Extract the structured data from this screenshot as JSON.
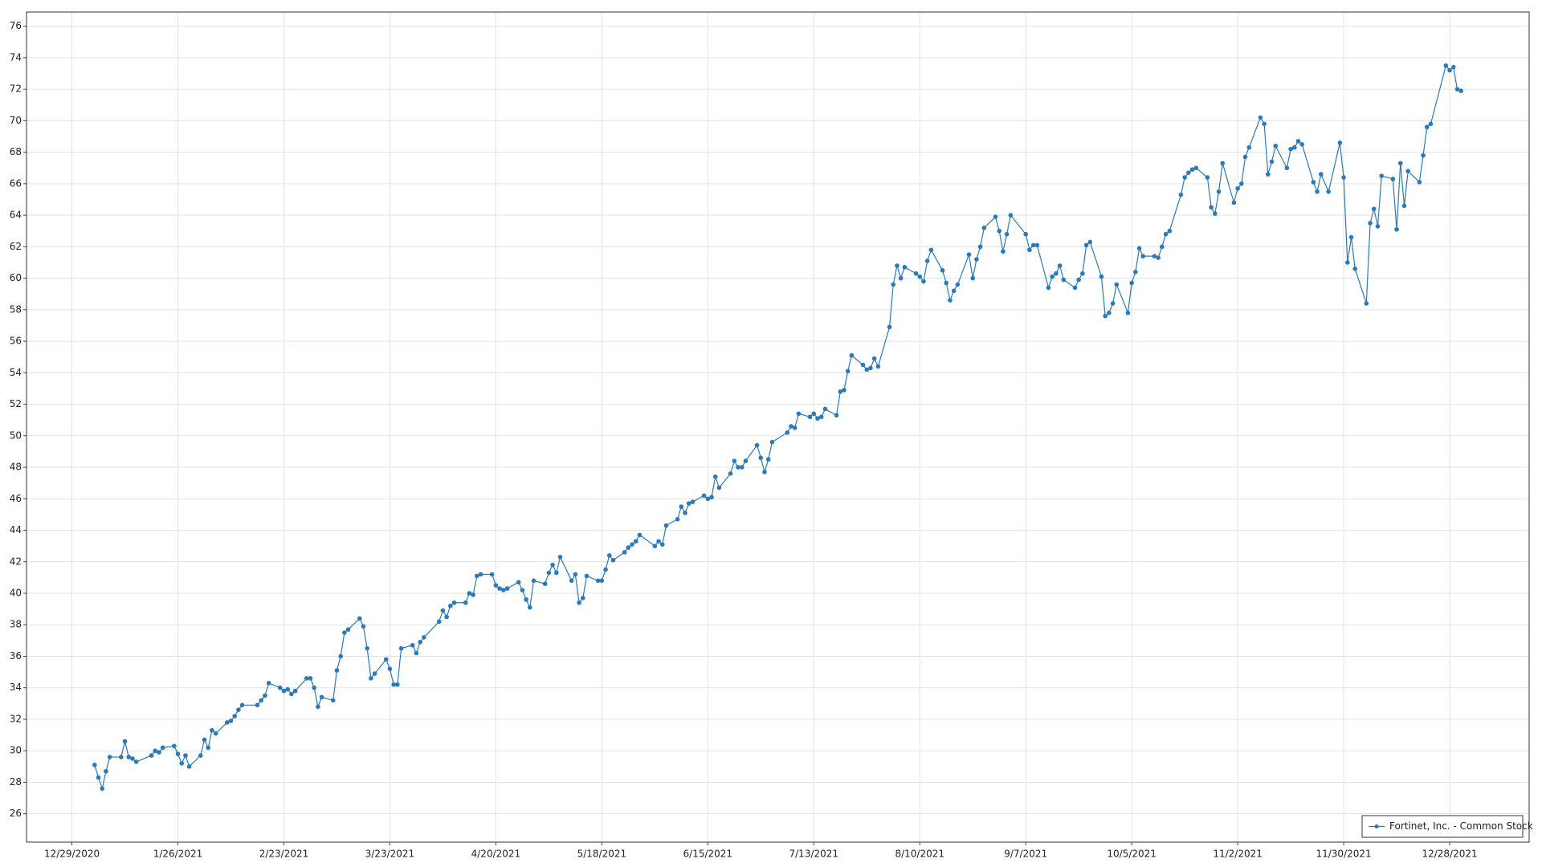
{
  "chart_data": {
    "type": "line",
    "x": [
      "1/4/2021",
      "1/5/2021",
      "1/6/2021",
      "1/7/2021",
      "1/8/2021",
      "1/11/2021",
      "1/12/2021",
      "1/13/2021",
      "1/14/2021",
      "1/15/2021",
      "1/19/2021",
      "1/20/2021",
      "1/21/2021",
      "1/22/2021",
      "1/25/2021",
      "1/26/2021",
      "1/27/2021",
      "1/28/2021",
      "1/29/2021",
      "2/1/2021",
      "2/2/2021",
      "2/3/2021",
      "2/4/2021",
      "2/5/2021",
      "2/8/2021",
      "2/9/2021",
      "2/10/2021",
      "2/11/2021",
      "2/12/2021",
      "2/16/2021",
      "2/17/2021",
      "2/18/2021",
      "2/19/2021",
      "2/22/2021",
      "2/23/2021",
      "2/24/2021",
      "2/25/2021",
      "2/26/2021",
      "3/1/2021",
      "3/2/2021",
      "3/3/2021",
      "3/4/2021",
      "3/5/2021",
      "3/8/2021",
      "3/9/2021",
      "3/10/2021",
      "3/11/2021",
      "3/12/2021",
      "3/15/2021",
      "3/16/2021",
      "3/17/2021",
      "3/18/2021",
      "3/19/2021",
      "3/22/2021",
      "3/23/2021",
      "3/24/2021",
      "3/25/2021",
      "3/26/2021",
      "3/29/2021",
      "3/30/2021",
      "3/31/2021",
      "4/1/2021",
      "4/5/2021",
      "4/6/2021",
      "4/7/2021",
      "4/8/2021",
      "4/9/2021",
      "4/12/2021",
      "4/13/2021",
      "4/14/2021",
      "4/15/2021",
      "4/16/2021",
      "4/19/2021",
      "4/20/2021",
      "4/21/2021",
      "4/22/2021",
      "4/23/2021",
      "4/26/2021",
      "4/27/2021",
      "4/28/2021",
      "4/29/2021",
      "4/30/2021",
      "5/3/2021",
      "5/4/2021",
      "5/5/2021",
      "5/6/2021",
      "5/7/2021",
      "5/10/2021",
      "5/11/2021",
      "5/12/2021",
      "5/13/2021",
      "5/14/2021",
      "5/17/2021",
      "5/18/2021",
      "5/19/2021",
      "5/20/2021",
      "5/21/2021",
      "5/24/2021",
      "5/25/2021",
      "5/26/2021",
      "5/27/2021",
      "5/28/2021",
      "6/1/2021",
      "6/2/2021",
      "6/3/2021",
      "6/4/2021",
      "6/7/2021",
      "6/8/2021",
      "6/9/2021",
      "6/10/2021",
      "6/11/2021",
      "6/14/2021",
      "6/15/2021",
      "6/16/2021",
      "6/17/2021",
      "6/18/2021",
      "6/21/2021",
      "6/22/2021",
      "6/23/2021",
      "6/24/2021",
      "6/25/2021",
      "6/28/2021",
      "6/29/2021",
      "6/30/2021",
      "7/1/2021",
      "7/2/2021",
      "7/6/2021",
      "7/7/2021",
      "7/8/2021",
      "7/9/2021",
      "7/12/2021",
      "7/13/2021",
      "7/14/2021",
      "7/15/2021",
      "7/16/2021",
      "7/19/2021",
      "7/20/2021",
      "7/21/2021",
      "7/22/2021",
      "7/23/2021",
      "7/26/2021",
      "7/27/2021",
      "7/28/2021",
      "7/29/2021",
      "7/30/2021",
      "8/2/2021",
      "8/3/2021",
      "8/4/2021",
      "8/5/2021",
      "8/6/2021",
      "8/9/2021",
      "8/10/2021",
      "8/11/2021",
      "8/12/2021",
      "8/13/2021",
      "8/16/2021",
      "8/17/2021",
      "8/18/2021",
      "8/19/2021",
      "8/20/2021",
      "8/23/2021",
      "8/24/2021",
      "8/25/2021",
      "8/26/2021",
      "8/27/2021",
      "8/30/2021",
      "8/31/2021",
      "9/1/2021",
      "9/2/2021",
      "9/3/2021",
      "9/7/2021",
      "9/8/2021",
      "9/9/2021",
      "9/10/2021",
      "9/13/2021",
      "9/14/2021",
      "9/15/2021",
      "9/16/2021",
      "9/17/2021",
      "9/20/2021",
      "9/21/2021",
      "9/22/2021",
      "9/23/2021",
      "9/24/2021",
      "9/27/2021",
      "9/28/2021",
      "9/29/2021",
      "9/30/2021",
      "10/1/2021",
      "10/4/2021",
      "10/5/2021",
      "10/6/2021",
      "10/7/2021",
      "10/8/2021",
      "10/11/2021",
      "10/12/2021",
      "10/13/2021",
      "10/14/2021",
      "10/15/2021",
      "10/18/2021",
      "10/19/2021",
      "10/20/2021",
      "10/21/2021",
      "10/22/2021",
      "10/25/2021",
      "10/26/2021",
      "10/27/2021",
      "10/28/2021",
      "10/29/2021",
      "11/1/2021",
      "11/2/2021",
      "11/3/2021",
      "11/4/2021",
      "11/5/2021",
      "11/8/2021",
      "11/9/2021",
      "11/10/2021",
      "11/11/2021",
      "11/12/2021",
      "11/15/2021",
      "11/16/2021",
      "11/17/2021",
      "11/18/2021",
      "11/19/2021",
      "11/22/2021",
      "11/23/2021",
      "11/24/2021",
      "11/26/2021",
      "11/29/2021",
      "11/30/2021",
      "12/1/2021",
      "12/2/2021",
      "12/3/2021",
      "12/6/2021",
      "12/7/2021",
      "12/8/2021",
      "12/9/2021",
      "12/10/2021",
      "12/13/2021",
      "12/14/2021",
      "12/15/2021",
      "12/16/2021",
      "12/17/2021",
      "12/20/2021",
      "12/21/2021",
      "12/22/2021",
      "12/23/2021",
      "12/27/2021",
      "12/28/2021",
      "12/29/2021",
      "12/30/2021",
      "12/31/2021"
    ],
    "series": [
      {
        "name": "Fortinet, Inc. - Common Stock",
        "color": "#2a7ab9",
        "values": [
          29.1,
          28.3,
          27.6,
          28.7,
          29.6,
          29.6,
          30.6,
          29.6,
          29.5,
          29.3,
          29.7,
          30.0,
          29.9,
          30.2,
          30.3,
          29.8,
          29.2,
          29.7,
          29.0,
          29.7,
          30.7,
          30.2,
          31.3,
          31.1,
          31.8,
          31.9,
          32.2,
          32.6,
          32.9,
          32.9,
          33.2,
          33.5,
          34.3,
          34.0,
          33.8,
          33.9,
          33.6,
          33.8,
          34.6,
          34.6,
          34.0,
          32.8,
          33.4,
          33.2,
          35.1,
          36.0,
          37.5,
          37.7,
          38.4,
          37.9,
          36.5,
          34.6,
          34.9,
          35.8,
          35.2,
          34.2,
          34.2,
          36.5,
          36.7,
          36.2,
          36.9,
          37.2,
          38.2,
          38.9,
          38.5,
          39.2,
          39.4,
          39.4,
          40.0,
          39.9,
          41.1,
          41.2,
          41.2,
          40.5,
          40.3,
          40.2,
          40.3,
          40.7,
          40.2,
          39.6,
          39.1,
          40.8,
          40.6,
          41.3,
          41.8,
          41.3,
          42.3,
          40.8,
          41.2,
          39.4,
          39.7,
          41.1,
          40.8,
          40.8,
          41.5,
          42.4,
          42.1,
          42.6,
          42.9,
          43.1,
          43.3,
          43.7,
          43.0,
          43.3,
          43.1,
          44.3,
          44.7,
          45.5,
          45.1,
          45.7,
          45.8,
          46.2,
          46.0,
          46.1,
          47.4,
          46.7,
          47.6,
          48.4,
          48.0,
          48.0,
          48.4,
          49.4,
          48.6,
          47.7,
          48.5,
          49.6,
          50.2,
          50.6,
          50.5,
          51.4,
          51.2,
          51.4,
          51.1,
          51.2,
          51.7,
          51.3,
          52.8,
          52.9,
          54.1,
          55.1,
          54.5,
          54.2,
          54.3,
          54.9,
          54.4,
          56.9,
          59.6,
          60.8,
          60.0,
          60.7,
          60.3,
          60.1,
          59.8,
          61.1,
          61.8,
          60.5,
          59.7,
          58.6,
          59.2,
          59.6,
          61.5,
          60.0,
          61.2,
          62.0,
          63.2,
          63.9,
          63.0,
          61.7,
          62.8,
          64.0,
          62.8,
          61.8,
          62.1,
          62.1,
          59.4,
          60.1,
          60.3,
          60.8,
          59.9,
          59.4,
          59.9,
          60.3,
          62.1,
          62.3,
          60.1,
          57.6,
          57.8,
          58.4,
          59.6,
          57.8,
          59.7,
          60.4,
          61.9,
          61.4,
          61.4,
          61.3,
          62.0,
          62.8,
          63.0,
          65.3,
          66.4,
          66.7,
          66.9,
          67.0,
          66.4,
          64.5,
          64.1,
          65.5,
          67.3,
          64.8,
          65.7,
          66.0,
          67.7,
          68.3,
          70.2,
          69.8,
          66.6,
          67.4,
          68.4,
          67.0,
          68.2,
          68.3,
          68.7,
          68.5,
          66.1,
          65.5,
          66.6,
          65.5,
          68.6,
          66.4,
          61.0,
          62.6,
          60.6,
          58.4,
          63.5,
          64.4,
          63.3,
          66.5,
          66.3,
          63.1,
          67.3,
          64.6,
          66.8,
          66.1,
          67.8,
          69.6,
          69.8,
          73.5,
          73.2,
          73.4,
          72.0,
          71.9
        ]
      }
    ],
    "xlim": [
      "12/17/2020",
      "1/18/2022"
    ],
    "xticks": [
      "12/29/2020",
      "1/26/2021",
      "2/23/2021",
      "3/23/2021",
      "4/20/2021",
      "5/18/2021",
      "6/15/2021",
      "7/13/2021",
      "8/10/2021",
      "9/7/2021",
      "10/5/2021",
      "11/2/2021",
      "11/30/2021",
      "12/28/2021"
    ],
    "ylim": [
      24.2,
      76.9
    ],
    "yticks": [
      26,
      28,
      30,
      32,
      34,
      36,
      38,
      40,
      42,
      44,
      46,
      48,
      50,
      52,
      54,
      56,
      58,
      60,
      62,
      64,
      66,
      68,
      70,
      72,
      74,
      76
    ],
    "grid": true,
    "legend": "lower right"
  }
}
